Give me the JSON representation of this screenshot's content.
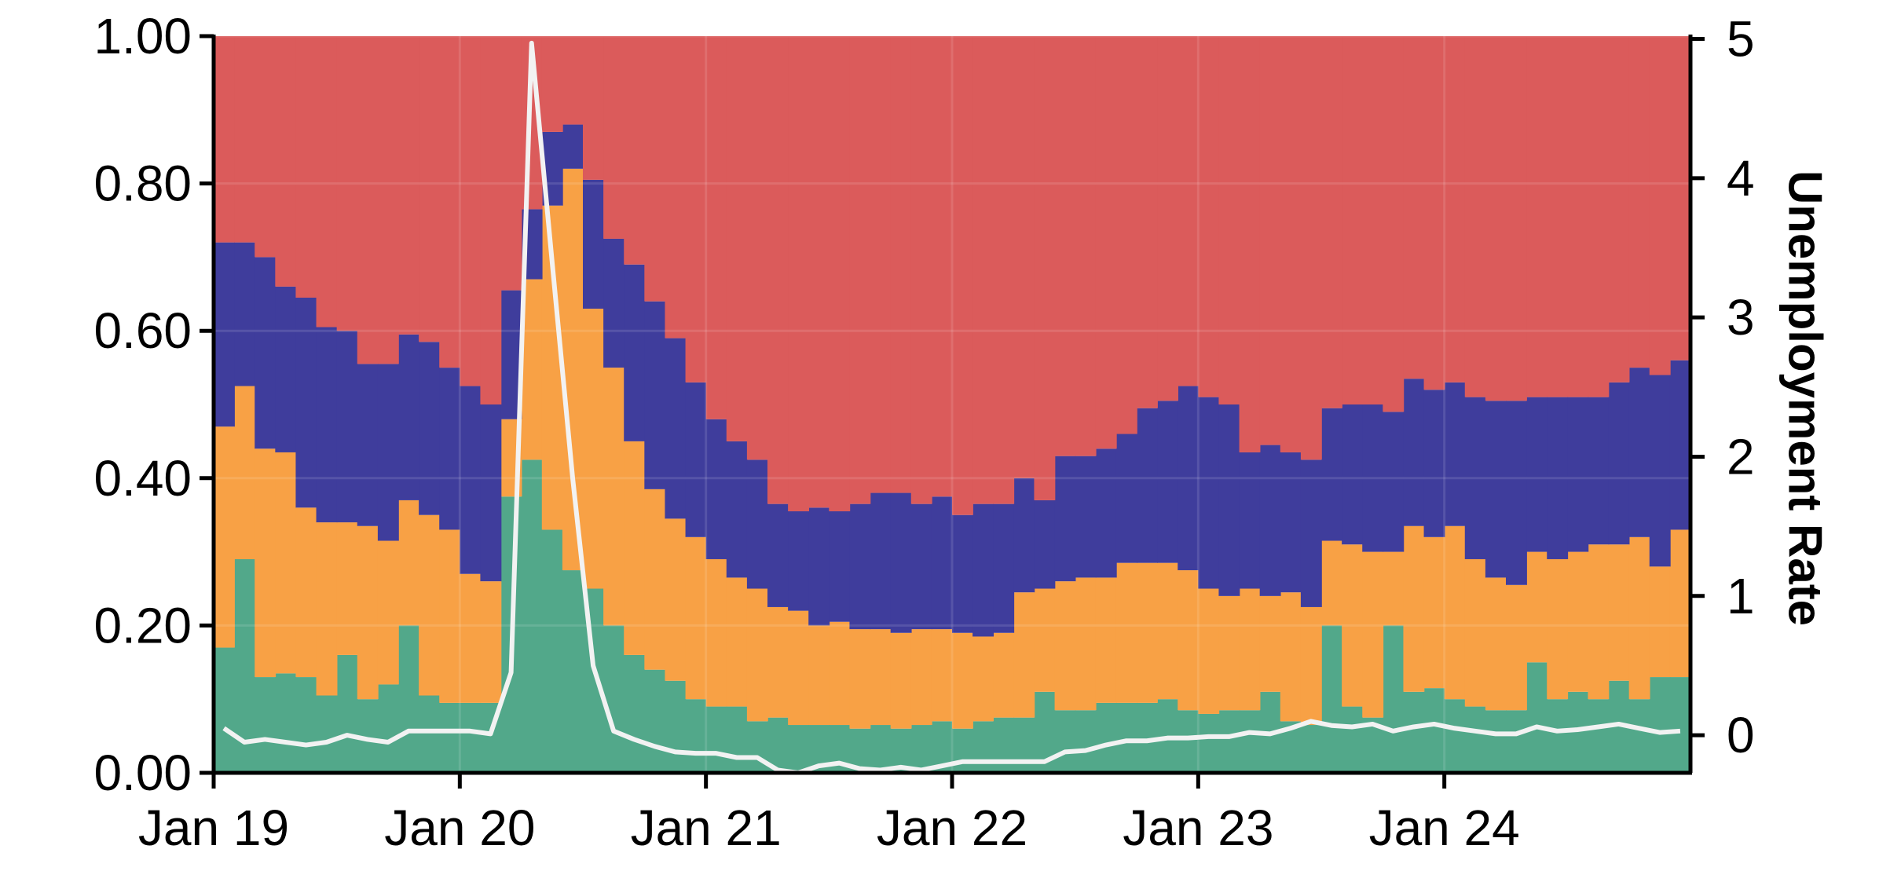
{
  "chart_data": {
    "type": "area",
    "stacked": true,
    "step": true,
    "x": [
      "2019-01",
      "2019-02",
      "2019-03",
      "2019-04",
      "2019-05",
      "2019-06",
      "2019-07",
      "2019-08",
      "2019-09",
      "2019-10",
      "2019-11",
      "2019-12",
      "2020-01",
      "2020-02",
      "2020-03",
      "2020-04",
      "2020-05",
      "2020-06",
      "2020-07",
      "2020-08",
      "2020-09",
      "2020-10",
      "2020-11",
      "2020-12",
      "2021-01",
      "2021-02",
      "2021-03",
      "2021-04",
      "2021-05",
      "2021-06",
      "2021-07",
      "2021-08",
      "2021-09",
      "2021-10",
      "2021-11",
      "2021-12",
      "2022-01",
      "2022-02",
      "2022-03",
      "2022-04",
      "2022-05",
      "2022-06",
      "2022-07",
      "2022-08",
      "2022-09",
      "2022-10",
      "2022-11",
      "2022-12",
      "2023-01",
      "2023-02",
      "2023-03",
      "2023-04",
      "2023-05",
      "2023-06",
      "2023-07",
      "2023-08",
      "2023-09",
      "2023-10",
      "2023-11",
      "2023-12",
      "2024-01",
      "2024-02",
      "2024-03",
      "2024-04",
      "2024-05",
      "2024-06",
      "2024-07",
      "2024-08",
      "2024-09",
      "2024-10",
      "2024-11",
      "2024-12"
    ],
    "series": [
      {
        "color": "#52a88a",
        "values": [
          0.17,
          0.29,
          0.13,
          0.135,
          0.13,
          0.105,
          0.16,
          0.1,
          0.12,
          0.2,
          0.105,
          0.095,
          0.095,
          0.095,
          0.375,
          0.425,
          0.33,
          0.275,
          0.25,
          0.2,
          0.16,
          0.14,
          0.125,
          0.1,
          0.09,
          0.09,
          0.07,
          0.075,
          0.065,
          0.065,
          0.065,
          0.06,
          0.065,
          0.06,
          0.065,
          0.07,
          0.06,
          0.07,
          0.075,
          0.075,
          0.11,
          0.085,
          0.085,
          0.095,
          0.095,
          0.095,
          0.1,
          0.085,
          0.08,
          0.085,
          0.085,
          0.11,
          0.07,
          0.065,
          0.2,
          0.09,
          0.075,
          0.2,
          0.11,
          0.115,
          0.1,
          0.09,
          0.085,
          0.085,
          0.15,
          0.1,
          0.11,
          0.1,
          0.125,
          0.1,
          0.13,
          0.13
        ]
      },
      {
        "color": "#f8a145",
        "values": [
          0.3,
          0.235,
          0.31,
          0.3,
          0.23,
          0.235,
          0.18,
          0.235,
          0.195,
          0.17,
          0.245,
          0.235,
          0.175,
          0.165,
          0.105,
          0.245,
          0.44,
          0.545,
          0.38,
          0.35,
          0.29,
          0.245,
          0.22,
          0.22,
          0.2,
          0.175,
          0.18,
          0.15,
          0.155,
          0.135,
          0.14,
          0.135,
          0.13,
          0.13,
          0.13,
          0.125,
          0.13,
          0.115,
          0.115,
          0.17,
          0.14,
          0.175,
          0.18,
          0.17,
          0.19,
          0.19,
          0.185,
          0.19,
          0.17,
          0.155,
          0.165,
          0.13,
          0.175,
          0.16,
          0.115,
          0.22,
          0.225,
          0.1,
          0.225,
          0.205,
          0.235,
          0.2,
          0.18,
          0.17,
          0.15,
          0.19,
          0.19,
          0.21,
          0.185,
          0.22,
          0.15,
          0.2
        ]
      },
      {
        "color": "#3f3d9c",
        "values": [
          0.25,
          0.195,
          0.26,
          0.225,
          0.285,
          0.265,
          0.26,
          0.22,
          0.24,
          0.225,
          0.235,
          0.22,
          0.255,
          0.24,
          0.175,
          0.095,
          0.1,
          0.06,
          0.175,
          0.175,
          0.24,
          0.255,
          0.245,
          0.21,
          0.19,
          0.185,
          0.175,
          0.14,
          0.135,
          0.16,
          0.15,
          0.17,
          0.185,
          0.19,
          0.17,
          0.18,
          0.16,
          0.18,
          0.175,
          0.155,
          0.12,
          0.17,
          0.165,
          0.175,
          0.175,
          0.21,
          0.22,
          0.25,
          0.26,
          0.26,
          0.185,
          0.205,
          0.19,
          0.2,
          0.18,
          0.19,
          0.2,
          0.19,
          0.2,
          0.2,
          0.195,
          0.22,
          0.24,
          0.25,
          0.21,
          0.22,
          0.21,
          0.2,
          0.22,
          0.23,
          0.26,
          0.23
        ]
      },
      {
        "color": "#db5b5b",
        "values": [
          0.28,
          0.28,
          0.3,
          0.34,
          0.355,
          0.395,
          0.4,
          0.445,
          0.445,
          0.405,
          0.415,
          0.45,
          0.475,
          0.5,
          0.345,
          0.235,
          0.13,
          0.12,
          0.105,
          0.245,
          0.29,
          0.36,
          0.41,
          0.47,
          0.52,
          0.55,
          0.575,
          0.635,
          0.645,
          0.64,
          0.645,
          0.635,
          0.62,
          0.62,
          0.635,
          0.625,
          0.65,
          0.635,
          0.635,
          0.6,
          0.63,
          0.57,
          0.565,
          0.56,
          0.54,
          0.505,
          0.495,
          0.475,
          0.49,
          0.5,
          0.565,
          0.555,
          0.565,
          0.575,
          0.505,
          0.5,
          0.5,
          0.51,
          0.465,
          0.48,
          0.47,
          0.49,
          0.495,
          0.495,
          0.49,
          0.49,
          0.49,
          0.49,
          0.47,
          0.45,
          0.46,
          0.44
        ]
      }
    ],
    "line": {
      "color": "#f2f2f2",
      "values": [
        0.05,
        -0.05,
        -0.03,
        -0.05,
        -0.07,
        -0.05,
        0.0,
        -0.03,
        -0.05,
        0.03,
        0.03,
        0.03,
        0.03,
        0.01,
        0.45,
        4.97,
        3.4,
        1.85,
        0.5,
        0.03,
        -0.03,
        -0.08,
        -0.12,
        -0.13,
        -0.13,
        -0.16,
        -0.16,
        -0.25,
        -0.27,
        -0.22,
        -0.2,
        -0.24,
        -0.25,
        -0.23,
        -0.25,
        -0.22,
        -0.19,
        -0.19,
        -0.19,
        -0.19,
        -0.19,
        -0.12,
        -0.11,
        -0.07,
        -0.04,
        -0.04,
        -0.02,
        -0.02,
        -0.01,
        -0.01,
        0.02,
        0.01,
        0.05,
        0.1,
        0.07,
        0.06,
        0.08,
        0.03,
        0.06,
        0.08,
        0.05,
        0.03,
        0.01,
        0.01,
        0.06,
        0.03,
        0.04,
        0.06,
        0.08,
        0.05,
        0.02,
        0.03
      ]
    },
    "xticks": [
      "Jan 19",
      "Jan 20",
      "Jan 21",
      "Jan 22",
      "Jan 23",
      "Jan 24"
    ],
    "xticks_at": [
      "2019-01",
      "2020-01",
      "2021-01",
      "2022-01",
      "2023-01",
      "2024-01"
    ],
    "ylim": [
      0,
      1
    ],
    "yticks": [
      "0.00",
      "0.20",
      "0.40",
      "0.60",
      "0.80",
      "1.00"
    ],
    "yticks_at": [
      0,
      0.2,
      0.4,
      0.6,
      0.8,
      1.0
    ],
    "y2label": "Unemployment Rate",
    "y2lim": [
      -0.27,
      5.02
    ],
    "y2ticks": [
      "0",
      "1",
      "2",
      "3",
      "4",
      "5"
    ],
    "y2ticks_at": [
      0,
      1,
      2,
      3,
      4,
      5
    ],
    "grid": true
  }
}
